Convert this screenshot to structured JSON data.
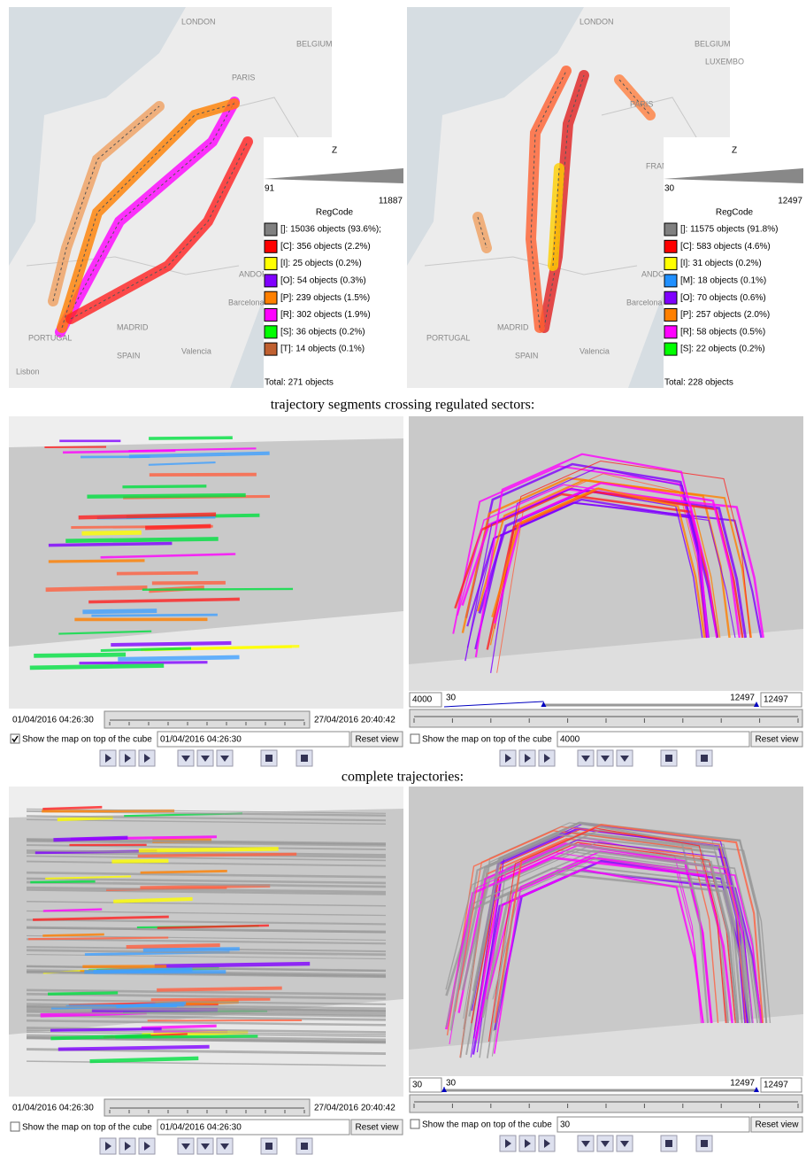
{
  "top_maps": [
    {
      "map_labels": [
        "LONDON",
        "BELGIUM",
        "PARIS",
        "ANDORRA",
        "Barcelona",
        "MADRID",
        "PORTUGAL",
        "SPAIN",
        "Valencia",
        "Lisbon"
      ],
      "z_label": "Z",
      "z_min": "91",
      "z_max": "11887",
      "legend_title": "RegCode",
      "legend_items": [
        {
          "label": "[]: 15036 objects (93.6%);",
          "color": "#808080"
        },
        {
          "label": "[C]: 356 objects (2.2%)",
          "color": "#ff0000"
        },
        {
          "label": "[I]: 25 objects (0.2%)",
          "color": "#ffff00"
        },
        {
          "label": "[O]: 54 objects (0.3%)",
          "color": "#8000ff"
        },
        {
          "label": "[P]: 239 objects (1.5%)",
          "color": "#ff8000"
        },
        {
          "label": "[R]: 302 objects (1.9%)",
          "color": "#ff00ff"
        },
        {
          "label": "[S]: 36 objects (0.2%)",
          "color": "#00ff00"
        },
        {
          "label": "[T]: 14 objects (0.1%)",
          "color": "#c06030"
        }
      ],
      "total": "Total: 271 objects"
    },
    {
      "map_labels": [
        "LONDON",
        "BELGIUM",
        "LUXEMBO",
        "PARIS",
        "FRANC",
        "ANDORRA",
        "Barcelona",
        "MADRID",
        "PORTUGAL",
        "SPAIN",
        "Valencia"
      ],
      "z_label": "Z",
      "z_min": "30",
      "z_max": "12497",
      "legend_title": "RegCode",
      "legend_items": [
        {
          "label": "[]: 11575 objects (91.8%)",
          "color": "#808080"
        },
        {
          "label": "[C]: 583 objects (4.6%)",
          "color": "#ff0000"
        },
        {
          "label": "[I]: 31 objects (0.2%)",
          "color": "#ffff00"
        },
        {
          "label": "[M]: 18 objects (0.1%)",
          "color": "#2090ff"
        },
        {
          "label": "[O]: 70 objects (0.6%)",
          "color": "#8000ff"
        },
        {
          "label": "[P]: 257 objects (2.0%)",
          "color": "#ff8000"
        },
        {
          "label": "[R]: 58 objects (0.5%)",
          "color": "#ff00ff"
        },
        {
          "label": "[S]: 22 objects (0.2%)",
          "color": "#00ff00"
        }
      ],
      "total": "Total: 228 objects"
    }
  ],
  "captions": [
    "trajectory segments crossing regulated sectors:",
    "complete trajectories:"
  ],
  "views": [
    {
      "kind": "time",
      "start": "01/04/2016 04:26:30",
      "end": "27/04/2016 20:40:42",
      "checked": true,
      "checkbox_label": "Show the map on top of the cube",
      "field": "01/04/2016 04:26:30",
      "button": "Reset view"
    },
    {
      "kind": "range",
      "low": 4000,
      "min": 30,
      "max": 12497,
      "high": 12497,
      "checked": false,
      "checkbox_label": "Show the map on top of the cube",
      "button": "Reset view"
    },
    {
      "kind": "time",
      "start": "01/04/2016 04:26:30",
      "end": "27/04/2016 20:40:42",
      "checked": false,
      "checkbox_label": "Show the map on top of the cube",
      "field": "01/04/2016 04:26:30",
      "button": "Reset view"
    },
    {
      "kind": "range",
      "low": 30,
      "min": 30,
      "max": 12497,
      "high": 12497,
      "checked": false,
      "checkbox_label": "Show the map on top of the cube",
      "button": "Reset view"
    }
  ]
}
